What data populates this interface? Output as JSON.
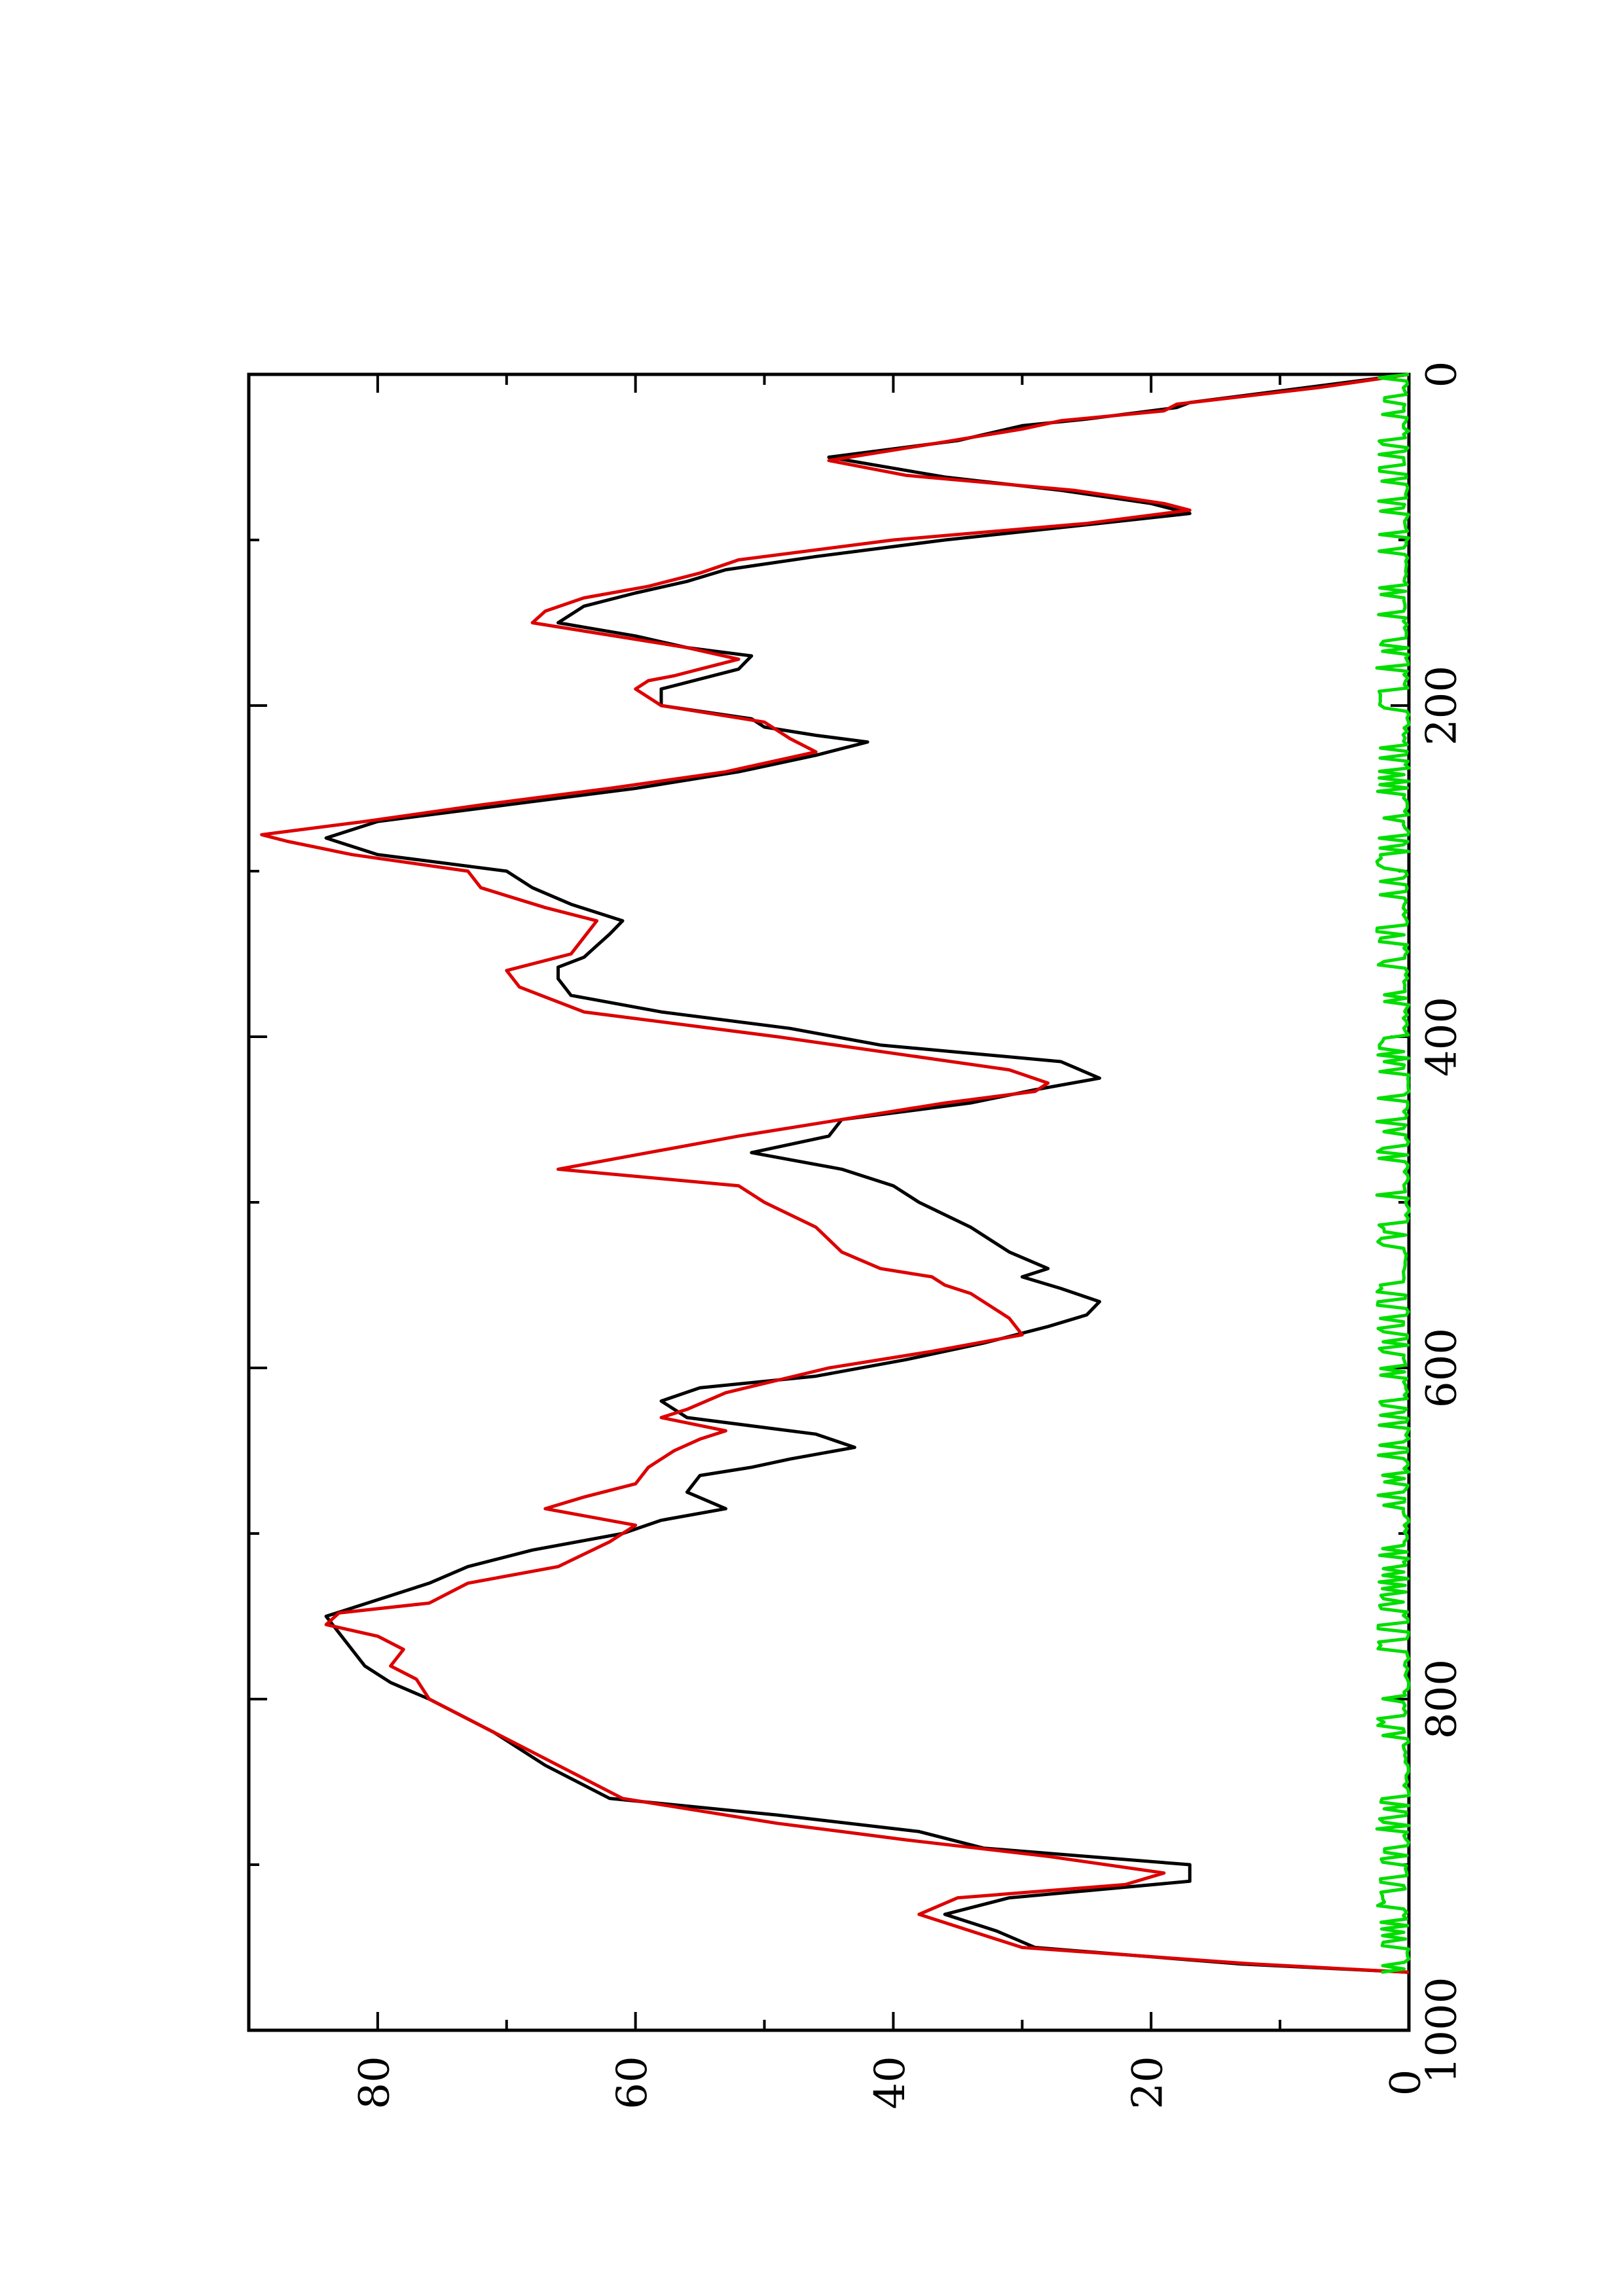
{
  "chart_data": {
    "type": "line",
    "orientation": "rotated-90-clockwise",
    "title": "",
    "xlabel": "",
    "ylabel": "",
    "xlim": [
      0,
      1000
    ],
    "ylim": [
      0,
      90
    ],
    "x_ticks": [
      {
        "value": 0,
        "label": "0"
      },
      {
        "value": 200,
        "label": "200"
      },
      {
        "value": 400,
        "label": "400"
      },
      {
        "value": 600,
        "label": "600"
      },
      {
        "value": 800,
        "label": "800"
      },
      {
        "value": 1000,
        "label": "1000"
      }
    ],
    "x_minor_ticks": [
      100,
      300,
      500,
      700,
      900
    ],
    "y_ticks": [
      {
        "value": 0,
        "label": "0"
      },
      {
        "value": 20,
        "label": "20"
      },
      {
        "value": 40,
        "label": "40"
      },
      {
        "value": 60,
        "label": "60"
      },
      {
        "value": 80,
        "label": "80"
      }
    ],
    "y_minor_ticks": [
      10,
      30,
      50,
      70
    ],
    "grid": false,
    "legend": "none",
    "series": [
      {
        "color": "#000000",
        "x": [
          0,
          8,
          17,
          20,
          27,
          31,
          40,
          50,
          62,
          70,
          78,
          84,
          90,
          100,
          110,
          118,
          125,
          132,
          140,
          150,
          158,
          165,
          170,
          178,
          190,
          200,
          208,
          213,
          218,
          222,
          230,
          240,
          250,
          260,
          270,
          280,
          290,
          300,
          310,
          320,
          330,
          338,
          345,
          352,
          358,
          365,
          375,
          385,
          395,
          405,
          415,
          425,
          432,
          440,
          450,
          460,
          470,
          480,
          490,
          500,
          515,
          530,
          540,
          545,
          552,
          560,
          568,
          575,
          585,
          595,
          605,
          612,
          620,
          630,
          640,
          648,
          655,
          660,
          665,
          675,
          685,
          692,
          700,
          710,
          720,
          730,
          740,
          750,
          760,
          770,
          780,
          790,
          800,
          820,
          840,
          860,
          870,
          880,
          890,
          900,
          910,
          920,
          930,
          940,
          950,
          960,
          965
        ],
        "values": [
          0,
          8,
          17,
          18,
          25,
          30,
          35,
          45,
          36,
          27,
          20,
          17,
          24,
          36,
          46,
          53,
          56,
          60,
          64,
          66,
          60,
          56,
          51,
          52,
          58,
          58,
          51,
          50,
          46,
          42,
          46,
          52,
          60,
          70,
          80,
          84,
          80,
          70,
          68,
          65,
          61,
          62,
          63,
          64,
          66,
          66,
          65,
          58,
          48,
          41,
          27,
          24,
          29,
          34,
          44,
          45,
          51,
          44,
          40,
          38,
          34,
          31,
          28,
          30,
          27,
          24,
          25,
          28,
          33,
          39,
          46,
          55,
          58,
          56,
          46,
          43,
          48,
          51,
          55,
          56,
          53,
          58,
          61,
          68,
          73,
          76,
          80,
          84,
          83,
          82,
          81,
          79,
          76,
          71,
          67,
          62,
          49,
          38,
          33,
          17,
          17,
          31,
          36,
          32,
          29,
          13,
          0
        ]
      },
      {
        "color": "#dd0000",
        "x": [
          0,
          8,
          18,
          22,
          28,
          33,
          42,
          52,
          61,
          70,
          78,
          82,
          90,
          100,
          112,
          120,
          128,
          135,
          143,
          150,
          160,
          165,
          172,
          178,
          182,
          185,
          190,
          200,
          210,
          220,
          228,
          240,
          250,
          260,
          270,
          278,
          282,
          290,
          300,
          310,
          322,
          330,
          340,
          350,
          360,
          370,
          385,
          400,
          410,
          420,
          428,
          433,
          440,
          450,
          460,
          470,
          480,
          490,
          500,
          515,
          530,
          540,
          545,
          550,
          555,
          560,
          570,
          580,
          590,
          600,
          615,
          625,
          630,
          638,
          643,
          650,
          660,
          670,
          678,
          685,
          695,
          705,
          720,
          730,
          742,
          748,
          755,
          762,
          770,
          780,
          788,
          800,
          820,
          840,
          860,
          875,
          880,
          885,
          895,
          905,
          912,
          920,
          930,
          940,
          950,
          960,
          965
        ],
        "values": [
          0,
          7,
          18,
          19,
          27,
          30,
          37,
          45,
          39,
          26,
          19,
          17,
          25,
          40,
          52,
          55,
          59,
          64,
          67,
          68,
          60,
          56,
          52,
          55,
          57,
          59,
          60,
          58,
          50,
          48,
          46,
          53,
          62,
          72,
          81,
          89,
          87,
          82,
          73,
          72,
          67,
          63,
          64,
          65,
          70,
          69,
          64,
          49,
          40,
          31,
          28,
          29,
          36,
          44,
          52,
          59,
          66,
          52,
          50,
          46,
          44,
          41,
          37,
          36,
          34,
          33,
          31,
          30,
          37,
          45,
          53,
          56,
          58,
          53,
          55,
          57,
          59,
          60,
          64,
          67,
          60,
          62,
          66,
          73,
          76,
          83,
          84,
          80,
          78,
          79,
          77,
          76,
          71,
          66,
          61,
          49,
          44,
          39,
          28,
          19,
          22,
          35,
          38,
          34,
          30,
          12,
          0
        ]
      },
      {
        "color": "#00dd00",
        "x_start": 0,
        "x_end": 965,
        "samples": 480,
        "seed": 7,
        "values_range": [
          0,
          2.5
        ],
        "values": []
      }
    ]
  }
}
